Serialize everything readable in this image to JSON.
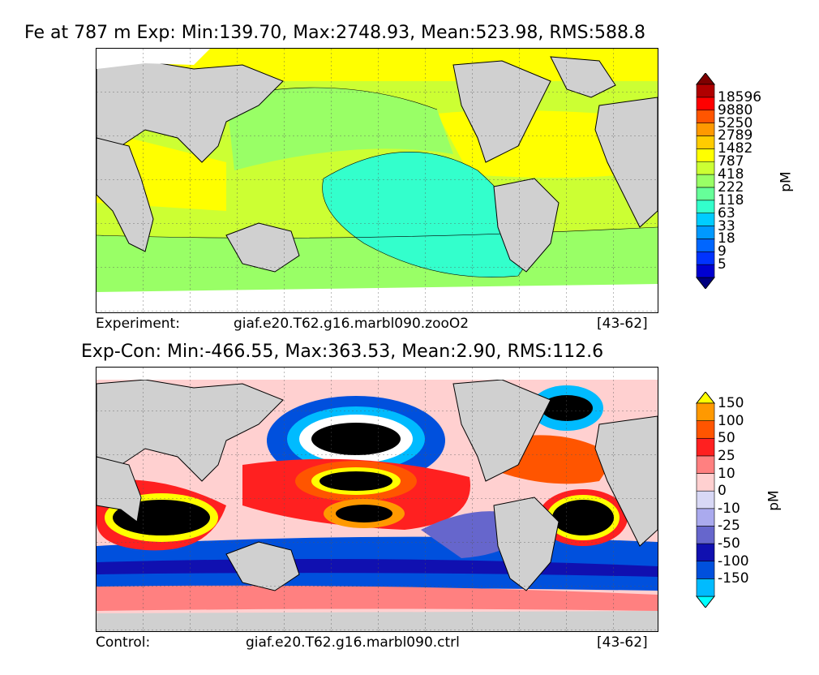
{
  "top": {
    "title": "Fe at 787 m Exp: Min:139.70, Max:2748.93, Mean:523.98, RMS:588.8",
    "left_label": "Experiment:",
    "case_name": "giaf.e20.T62.g16.marbl090.zooO2",
    "years": "[43-62]",
    "units": "pM",
    "levels": [
      "5",
      "9",
      "18",
      "33",
      "63",
      "118",
      "222",
      "418",
      "787",
      "1482",
      "2789",
      "5250",
      "9880",
      "18596"
    ],
    "colors": [
      "#00007f",
      "#0000d0",
      "#0033ff",
      "#0066ff",
      "#0099ff",
      "#00ccff",
      "#33ffcc",
      "#66ff99",
      "#99ff66",
      "#ccff33",
      "#ffff00",
      "#ffcc00",
      "#ff9900",
      "#ff5500",
      "#ff0000",
      "#b00000",
      "#7f0000"
    ]
  },
  "bottom": {
    "title": "Exp-Con: Min:-466.55, Max:363.53, Mean:2.90, RMS:112.6",
    "left_label": "Control:",
    "case_name": "giaf.e20.T62.g16.marbl090.ctrl",
    "years": "[43-62]",
    "units": "pM",
    "levels": [
      "-150",
      "-100",
      "-50",
      "-25",
      "-10",
      "0",
      "10",
      "25",
      "50",
      "100",
      "150"
    ],
    "colors": [
      "#00ffff",
      "#00bbff",
      "#0050dd",
      "#1010b0",
      "#6666cc",
      "#aaaaee",
      "#d8d8f5",
      "#ffd0d0",
      "#ff8080",
      "#ff2020",
      "#ff5500",
      "#ff9900",
      "#ffff00"
    ]
  }
}
